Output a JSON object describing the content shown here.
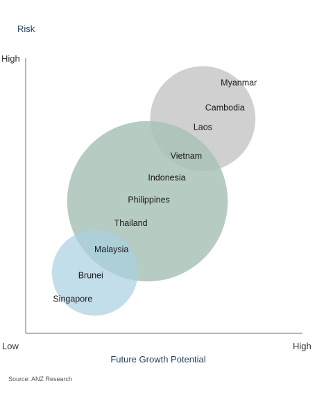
{
  "chart_data": {
    "type": "bubble",
    "y_title": "Risk",
    "x_title": "Future Growth Potential",
    "x_ticks": {
      "low": "Low",
      "high": "High"
    },
    "y_ticks": {
      "high": "High"
    },
    "groups": [
      {
        "color": "#c8c8c8",
        "opacity": 0.85,
        "x": 0.64,
        "y": 0.78,
        "r": 0.19
      },
      {
        "color": "#a9c2b6",
        "opacity": 0.85,
        "x": 0.44,
        "y": 0.48,
        "r": 0.29
      },
      {
        "color": "#a8d0e1",
        "opacity": 0.7,
        "x": 0.25,
        "y": 0.22,
        "r": 0.155
      }
    ],
    "countries": [
      {
        "name": "Myanmar",
        "x": 0.77,
        "y": 0.91
      },
      {
        "name": "Cambodia",
        "x": 0.72,
        "y": 0.82
      },
      {
        "name": "Laos",
        "x": 0.64,
        "y": 0.75
      },
      {
        "name": "Vietnam",
        "x": 0.58,
        "y": 0.645
      },
      {
        "name": "Indonesia",
        "x": 0.51,
        "y": 0.565
      },
      {
        "name": "Philippines",
        "x": 0.445,
        "y": 0.485
      },
      {
        "name": "Thailand",
        "x": 0.38,
        "y": 0.4
      },
      {
        "name": "Malaysia",
        "x": 0.31,
        "y": 0.305
      },
      {
        "name": "Brunei",
        "x": 0.235,
        "y": 0.21
      },
      {
        "name": "Singapore",
        "x": 0.17,
        "y": 0.125
      }
    ]
  },
  "source": "Source: ANZ Research"
}
